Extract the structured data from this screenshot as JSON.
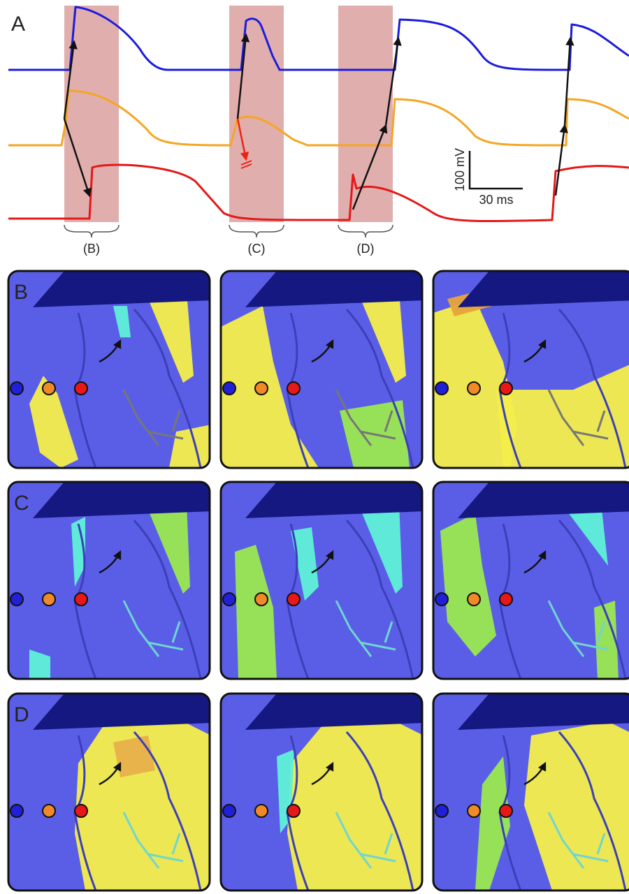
{
  "panel_a": {
    "label": "A",
    "windows": [
      "(B)",
      "(C)",
      "(D)"
    ],
    "scale_bar": {
      "voltage": "100 mV",
      "time": "30 ms"
    }
  },
  "rows": [
    {
      "label": "B"
    },
    {
      "label": "C"
    },
    {
      "label": "D"
    }
  ]
}
